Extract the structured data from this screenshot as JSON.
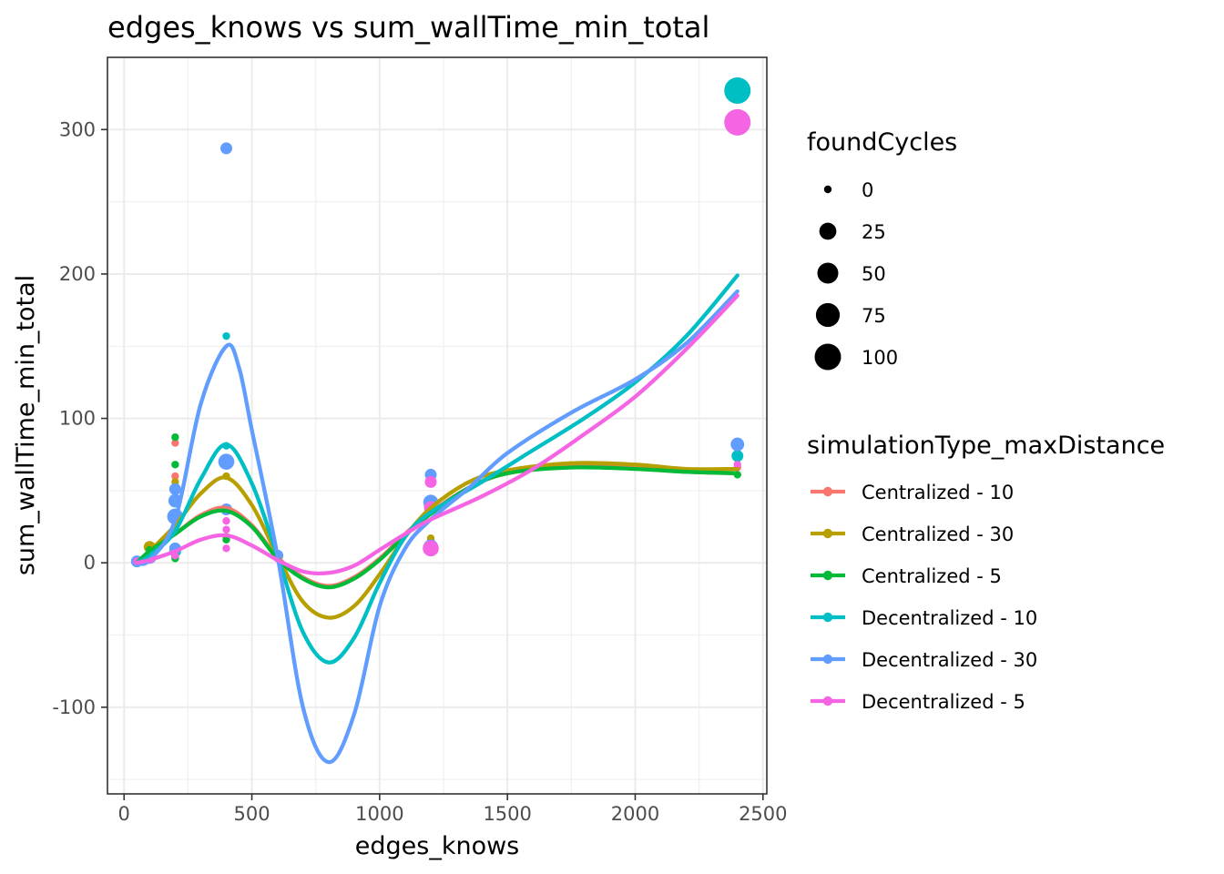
{
  "chart_data": {
    "type": "scatter",
    "title": "edges_knows  vs  sum_wallTime_min_total",
    "xlabel": "edges_knows",
    "ylabel": "sum_wallTime_min_total",
    "xlim": [
      -65,
      2515
    ],
    "ylim": [
      -160,
      350
    ],
    "x_ticks": [
      0,
      500,
      1000,
      1500,
      2000,
      2500
    ],
    "x_tick_labels": [
      "0",
      "500",
      "1000",
      "1500",
      "2000",
      "2500"
    ],
    "y_ticks": [
      -100,
      0,
      100,
      200,
      300
    ],
    "y_tick_labels": [
      "-100",
      "0",
      "100",
      "200",
      "300"
    ],
    "grid": true,
    "legend_position": "right",
    "size_legend": {
      "title": "foundCycles",
      "entries": [
        {
          "label": "0",
          "value": 0
        },
        {
          "label": "25",
          "value": 25
        },
        {
          "label": "50",
          "value": 50
        },
        {
          "label": "75",
          "value": 75
        },
        {
          "label": "100",
          "value": 100
        }
      ]
    },
    "color_legend_title": "simulationType_maxDistance",
    "series": [
      {
        "name": "Centralized - 10",
        "color": "#F8766D",
        "points": [
          [
            50,
            1,
            0
          ],
          [
            100,
            6,
            0
          ],
          [
            200,
            83,
            0
          ],
          [
            200,
            60,
            0
          ],
          [
            200,
            4,
            0
          ],
          [
            400,
            36,
            0
          ],
          [
            600,
            3,
            0
          ],
          [
            1200,
            16,
            0
          ],
          [
            2400,
            66,
            0
          ]
        ],
        "smooth": [
          [
            50,
            0
          ],
          [
            100,
            8
          ],
          [
            200,
            20
          ],
          [
            300,
            33
          ],
          [
            400,
            38
          ],
          [
            500,
            26
          ],
          [
            600,
            4
          ],
          [
            700,
            -10
          ],
          [
            800,
            -16
          ],
          [
            900,
            -10
          ],
          [
            1000,
            3
          ],
          [
            1100,
            20
          ],
          [
            1200,
            35
          ],
          [
            1350,
            52
          ],
          [
            1500,
            62
          ],
          [
            1750,
            67
          ],
          [
            2000,
            66
          ],
          [
            2200,
            63
          ],
          [
            2400,
            62
          ]
        ]
      },
      {
        "name": "Centralized - 30",
        "color": "#B79F00",
        "points": [
          [
            50,
            1,
            2
          ],
          [
            100,
            11,
            5
          ],
          [
            200,
            56,
            0
          ],
          [
            200,
            4,
            0
          ],
          [
            400,
            70,
            5
          ],
          [
            400,
            60,
            0
          ],
          [
            400,
            18,
            0
          ],
          [
            600,
            6,
            0
          ],
          [
            1200,
            17,
            0
          ],
          [
            2400,
            72,
            0
          ]
        ],
        "smooth": [
          [
            50,
            0
          ],
          [
            100,
            8
          ],
          [
            200,
            26
          ],
          [
            300,
            48
          ],
          [
            400,
            59
          ],
          [
            500,
            40
          ],
          [
            600,
            5
          ],
          [
            700,
            -27
          ],
          [
            800,
            -38
          ],
          [
            900,
            -30
          ],
          [
            1000,
            -8
          ],
          [
            1100,
            18
          ],
          [
            1200,
            38
          ],
          [
            1350,
            56
          ],
          [
            1500,
            64
          ],
          [
            1750,
            69
          ],
          [
            2000,
            68
          ],
          [
            2200,
            65
          ],
          [
            2400,
            65
          ]
        ]
      },
      {
        "name": "Centralized - 5",
        "color": "#00BA38",
        "points": [
          [
            50,
            1,
            0
          ],
          [
            100,
            9,
            0
          ],
          [
            200,
            87,
            0
          ],
          [
            200,
            68,
            0
          ],
          [
            200,
            50,
            0
          ],
          [
            200,
            3,
            0
          ],
          [
            400,
            16,
            0
          ],
          [
            600,
            6,
            0
          ],
          [
            1200,
            58,
            0
          ],
          [
            2400,
            61,
            0
          ]
        ],
        "smooth": [
          [
            50,
            0
          ],
          [
            100,
            8
          ],
          [
            200,
            20
          ],
          [
            300,
            32
          ],
          [
            400,
            36
          ],
          [
            500,
            25
          ],
          [
            600,
            3
          ],
          [
            700,
            -11
          ],
          [
            800,
            -17
          ],
          [
            900,
            -11
          ],
          [
            1000,
            2
          ],
          [
            1100,
            19
          ],
          [
            1200,
            34
          ],
          [
            1350,
            52
          ],
          [
            1500,
            62
          ],
          [
            1750,
            66
          ],
          [
            2000,
            65
          ],
          [
            2200,
            63
          ],
          [
            2400,
            62
          ]
        ]
      },
      {
        "name": "Decentralized - 10",
        "color": "#00BFC4",
        "points": [
          [
            50,
            1,
            2
          ],
          [
            100,
            3,
            2
          ],
          [
            200,
            8,
            5
          ],
          [
            400,
            157,
            0
          ],
          [
            400,
            81,
            0
          ],
          [
            600,
            5,
            0
          ],
          [
            1200,
            40,
            10
          ],
          [
            2400,
            327,
            100
          ],
          [
            2400,
            74,
            5
          ]
        ],
        "smooth": [
          [
            50,
            0
          ],
          [
            100,
            5
          ],
          [
            200,
            22
          ],
          [
            300,
            58
          ],
          [
            400,
            82
          ],
          [
            500,
            55
          ],
          [
            600,
            5
          ],
          [
            700,
            -48
          ],
          [
            800,
            -69
          ],
          [
            900,
            -52
          ],
          [
            1000,
            -14
          ],
          [
            1100,
            18
          ],
          [
            1200,
            35
          ],
          [
            1400,
            56
          ],
          [
            1600,
            78
          ],
          [
            1800,
            100
          ],
          [
            2000,
            125
          ],
          [
            2200,
            157
          ],
          [
            2400,
            199
          ]
        ]
      },
      {
        "name": "Decentralized - 30",
        "color": "#619CFF",
        "points": [
          [
            50,
            1,
            5
          ],
          [
            100,
            4,
            10
          ],
          [
            200,
            32,
            20
          ],
          [
            200,
            43,
            10
          ],
          [
            200,
            51,
            5
          ],
          [
            200,
            10,
            5
          ],
          [
            400,
            287,
            5
          ],
          [
            400,
            70,
            20
          ],
          [
            400,
            37,
            5
          ],
          [
            600,
            5,
            5
          ],
          [
            1200,
            42,
            15
          ],
          [
            1200,
            11,
            15
          ],
          [
            1200,
            61,
            5
          ],
          [
            2400,
            82,
            10
          ]
        ],
        "smooth": [
          [
            50,
            0
          ],
          [
            100,
            2
          ],
          [
            200,
            30
          ],
          [
            300,
            110
          ],
          [
            400,
            150
          ],
          [
            450,
            135
          ],
          [
            500,
            92
          ],
          [
            600,
            5
          ],
          [
            700,
            -100
          ],
          [
            800,
            -138
          ],
          [
            900,
            -105
          ],
          [
            1000,
            -30
          ],
          [
            1100,
            10
          ],
          [
            1200,
            30
          ],
          [
            1350,
            52
          ],
          [
            1500,
            76
          ],
          [
            1750,
            104
          ],
          [
            2000,
            127
          ],
          [
            2200,
            152
          ],
          [
            2400,
            188
          ]
        ]
      },
      {
        "name": "Decentralized - 5",
        "color": "#F564E3",
        "points": [
          [
            50,
            1,
            0
          ],
          [
            100,
            3,
            2
          ],
          [
            200,
            5,
            0
          ],
          [
            400,
            29,
            0
          ],
          [
            400,
            23,
            0
          ],
          [
            400,
            10,
            0
          ],
          [
            600,
            3,
            0
          ],
          [
            1200,
            10,
            20
          ],
          [
            1200,
            38,
            10
          ],
          [
            1200,
            56,
            5
          ],
          [
            2400,
            305,
            100
          ],
          [
            2400,
            68,
            0
          ]
        ],
        "smooth": [
          [
            50,
            0
          ],
          [
            100,
            2
          ],
          [
            200,
            8
          ],
          [
            300,
            16
          ],
          [
            400,
            19
          ],
          [
            500,
            12
          ],
          [
            600,
            2
          ],
          [
            700,
            -6
          ],
          [
            800,
            -7
          ],
          [
            900,
            -2
          ],
          [
            1000,
            9
          ],
          [
            1100,
            20
          ],
          [
            1200,
            30
          ],
          [
            1400,
            46
          ],
          [
            1600,
            65
          ],
          [
            1800,
            89
          ],
          [
            2000,
            115
          ],
          [
            2200,
            148
          ],
          [
            2400,
            185
          ]
        ]
      }
    ]
  }
}
